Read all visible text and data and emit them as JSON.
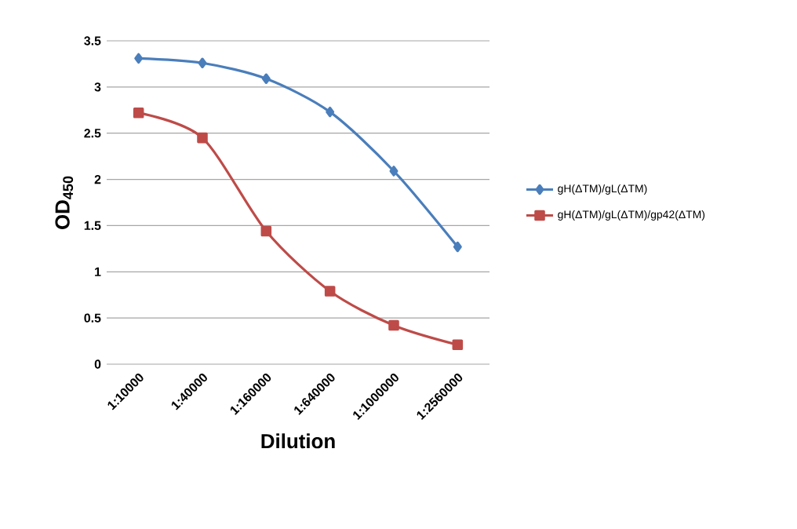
{
  "chart_data": {
    "type": "line",
    "xlabel": "Dilution",
    "ylabel": "OD$_{450}$",
    "categories": [
      "1:10000",
      "1:40000",
      "1:160000",
      "1:640000",
      "1:1000000",
      "1:2560000"
    ],
    "series": [
      {
        "name": "gH(ΔTM)/gL(ΔTM)",
        "color": "#4a7ebb",
        "marker": "diamond",
        "values": [
          3.31,
          3.26,
          3.09,
          2.73,
          2.09,
          1.27
        ]
      },
      {
        "name": "gH(ΔTM)/gL(ΔTM)/gp42(ΔTM)",
        "color": "#be4b48",
        "marker": "square",
        "values": [
          2.72,
          2.45,
          1.44,
          0.79,
          0.42,
          0.21
        ]
      }
    ],
    "ylim": [
      0,
      3.5
    ],
    "yticks": [
      0,
      0.5,
      1,
      1.5,
      2,
      2.5,
      3,
      3.5
    ],
    "grid": "y",
    "legend": "right"
  }
}
